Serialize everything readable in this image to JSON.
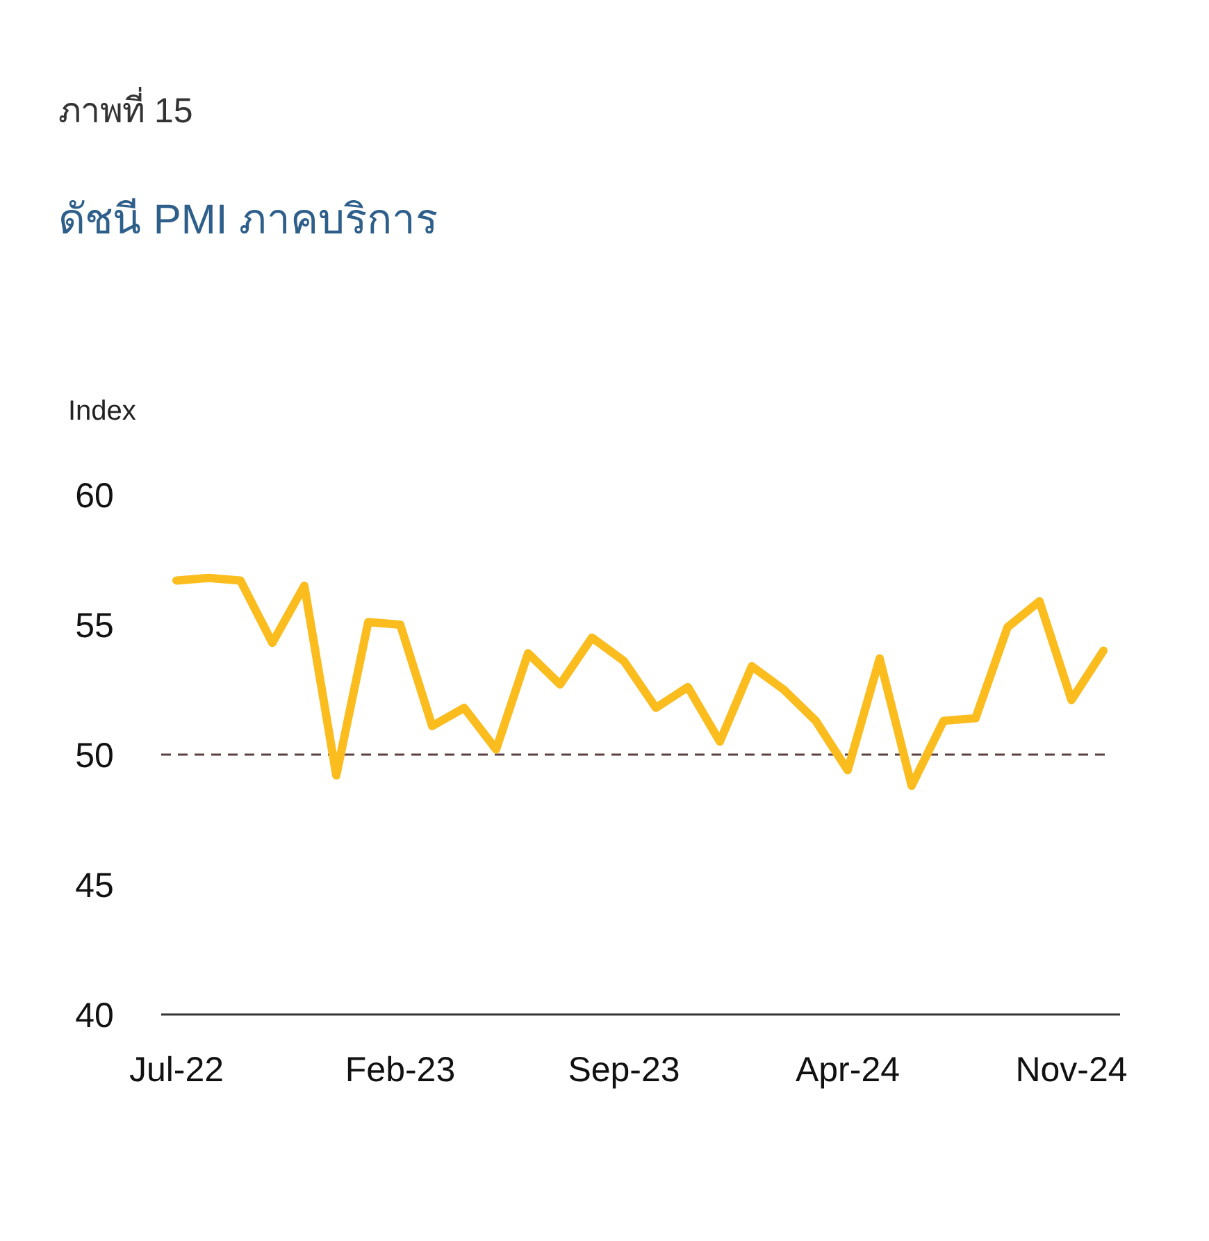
{
  "chart_data": {
    "type": "line",
    "title": "ภาพที่ 15",
    "subtitle": "ดัชนี PMI ภาคบริการ",
    "ylabel": "Index",
    "categories": [
      "Jul-22",
      null,
      null,
      null,
      null,
      null,
      null,
      "Feb-23",
      null,
      null,
      null,
      null,
      null,
      null,
      "Sep-23",
      null,
      null,
      null,
      null,
      null,
      null,
      "Apr-24",
      null,
      null,
      null,
      null,
      null,
      null,
      "Nov-24",
      null
    ],
    "series": [
      {
        "color": "#fbbc1e",
        "values": [
          56.7,
          56.8,
          56.7,
          54.3,
          56.5,
          49.2,
          55.1,
          55.0,
          51.1,
          51.8,
          50.2,
          53.9,
          52.7,
          54.5,
          53.6,
          51.8,
          52.6,
          50.5,
          53.4,
          52.5,
          51.3,
          49.4,
          53.7,
          48.8,
          51.3,
          51.4,
          54.9,
          55.9,
          52.1,
          54.0
        ]
      }
    ],
    "ylim": [
      40,
      60
    ],
    "yticks": [
      40,
      45,
      50,
      55,
      60
    ],
    "grid": false,
    "marker": "none",
    "line_style": "solid",
    "ref_lines": [
      {
        "axis": "y",
        "value": 50,
        "color": "#5a4040",
        "line_style": "dashed"
      }
    ]
  }
}
